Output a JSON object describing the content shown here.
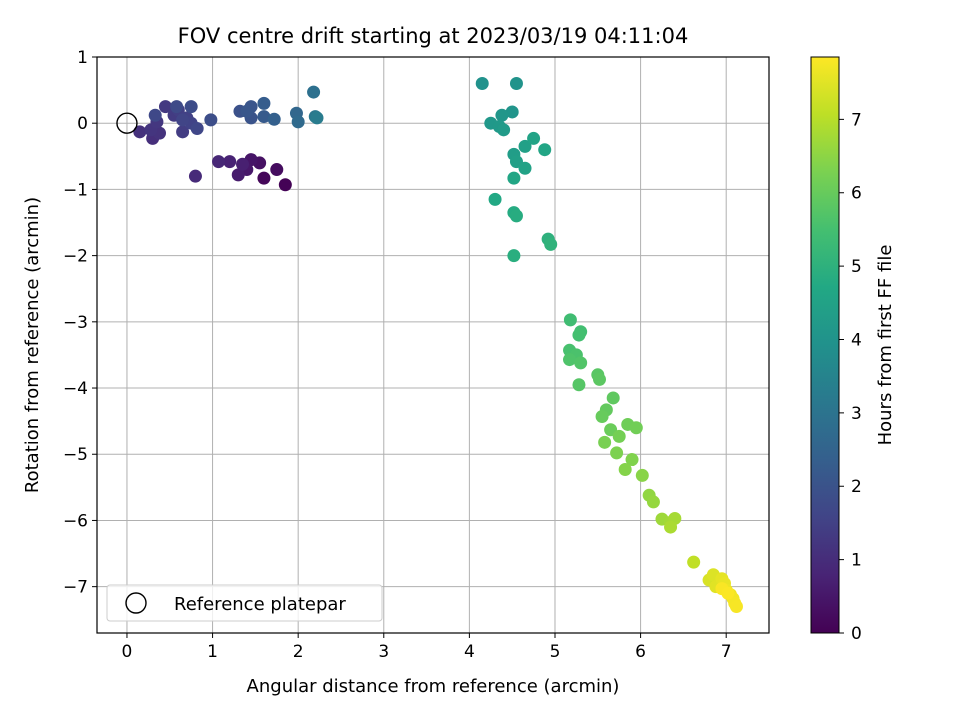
{
  "chart_data": {
    "type": "scatter",
    "title": "FOV centre drift starting at 2023/03/19 04:11:04",
    "xlabel": "Angular distance from reference (arcmin)",
    "ylabel": "Rotation from reference (arcmin)",
    "xlim": [
      -0.35,
      7.5
    ],
    "ylim": [
      -7.7,
      1.0
    ],
    "xticks": [
      0,
      1,
      2,
      3,
      4,
      5,
      6,
      7
    ],
    "yticks": [
      1,
      0,
      -1,
      -2,
      -3,
      -4,
      -5,
      -6,
      -7
    ],
    "grid": true,
    "legend": {
      "placement": "lower-left",
      "entries": [
        {
          "label": "Reference platepar",
          "marker": "open-circle"
        }
      ]
    },
    "reference_point": {
      "x": 0,
      "y": 0
    },
    "colorbar": {
      "label": "Hours from first FF file",
      "colormap": "viridis",
      "range": [
        0,
        7.85
      ],
      "ticks": [
        0,
        1,
        2,
        3,
        4,
        5,
        6,
        7
      ]
    },
    "series": [
      {
        "color_by": "hours",
        "points": [
          {
            "x": 1.85,
            "y": -0.93,
            "h": 0.05
          },
          {
            "x": 1.6,
            "y": -0.83,
            "h": 0.15
          },
          {
            "x": 1.75,
            "y": -0.7,
            "h": 0.25
          },
          {
            "x": 1.55,
            "y": -0.6,
            "h": 0.35
          },
          {
            "x": 1.45,
            "y": -0.55,
            "h": 0.45
          },
          {
            "x": 1.4,
            "y": -0.7,
            "h": 0.5
          },
          {
            "x": 1.3,
            "y": -0.78,
            "h": 0.6
          },
          {
            "x": 1.35,
            "y": -0.62,
            "h": 0.7
          },
          {
            "x": 1.2,
            "y": -0.58,
            "h": 0.75
          },
          {
            "x": 1.07,
            "y": -0.58,
            "h": 0.85
          },
          {
            "x": 0.8,
            "y": -0.8,
            "h": 0.95
          },
          {
            "x": 0.3,
            "y": -0.23,
            "h": 1.05
          },
          {
            "x": 0.15,
            "y": -0.13,
            "h": 1.1
          },
          {
            "x": 0.38,
            "y": -0.15,
            "h": 1.15
          },
          {
            "x": 0.28,
            "y": -0.1,
            "h": 1.2
          },
          {
            "x": 0.35,
            "y": 0.02,
            "h": 1.25
          },
          {
            "x": 0.45,
            "y": 0.25,
            "h": 1.3
          },
          {
            "x": 0.55,
            "y": 0.12,
            "h": 1.35
          },
          {
            "x": 0.65,
            "y": -0.13,
            "h": 1.4
          },
          {
            "x": 0.6,
            "y": 0.2,
            "h": 1.45
          },
          {
            "x": 0.7,
            "y": 0.08,
            "h": 1.5
          },
          {
            "x": 0.75,
            "y": 0.0,
            "h": 1.55
          },
          {
            "x": 0.65,
            "y": 0.05,
            "h": 1.6
          },
          {
            "x": 0.82,
            "y": -0.08,
            "h": 1.65
          },
          {
            "x": 0.33,
            "y": 0.12,
            "h": 1.7
          },
          {
            "x": 0.58,
            "y": 0.25,
            "h": 1.75
          },
          {
            "x": 0.75,
            "y": 0.25,
            "h": 1.8
          },
          {
            "x": 0.98,
            "y": 0.05,
            "h": 1.85
          },
          {
            "x": 1.32,
            "y": 0.18,
            "h": 1.95
          },
          {
            "x": 1.45,
            "y": 0.08,
            "h": 2.0
          },
          {
            "x": 1.45,
            "y": 0.25,
            "h": 2.05
          },
          {
            "x": 1.4,
            "y": 0.18,
            "h": 2.1
          },
          {
            "x": 1.6,
            "y": 0.1,
            "h": 2.2
          },
          {
            "x": 1.6,
            "y": 0.3,
            "h": 2.3
          },
          {
            "x": 1.72,
            "y": 0.06,
            "h": 2.4
          },
          {
            "x": 1.98,
            "y": 0.15,
            "h": 2.6
          },
          {
            "x": 2.0,
            "y": 0.02,
            "h": 2.7
          },
          {
            "x": 2.18,
            "y": 0.47,
            "h": 2.9
          },
          {
            "x": 2.2,
            "y": 0.1,
            "h": 3.1
          },
          {
            "x": 2.22,
            "y": 0.08,
            "h": 3.25
          },
          {
            "x": 4.15,
            "y": 0.6,
            "h": 3.95
          },
          {
            "x": 4.55,
            "y": 0.6,
            "h": 4.0
          },
          {
            "x": 4.5,
            "y": 0.17,
            "h": 4.05
          },
          {
            "x": 4.38,
            "y": 0.12,
            "h": 4.1
          },
          {
            "x": 4.25,
            "y": 0.0,
            "h": 4.15
          },
          {
            "x": 4.35,
            "y": -0.05,
            "h": 4.2
          },
          {
            "x": 4.4,
            "y": -0.1,
            "h": 4.25
          },
          {
            "x": 4.52,
            "y": -0.47,
            "h": 4.35
          },
          {
            "x": 4.55,
            "y": -0.58,
            "h": 4.4
          },
          {
            "x": 4.65,
            "y": -0.35,
            "h": 4.45
          },
          {
            "x": 4.65,
            "y": -0.68,
            "h": 4.5
          },
          {
            "x": 4.75,
            "y": -0.23,
            "h": 4.55
          },
          {
            "x": 4.88,
            "y": -0.4,
            "h": 4.6
          },
          {
            "x": 4.52,
            "y": -0.83,
            "h": 4.65
          },
          {
            "x": 4.3,
            "y": -1.15,
            "h": 4.7
          },
          {
            "x": 4.52,
            "y": -1.35,
            "h": 4.8
          },
          {
            "x": 4.55,
            "y": -1.4,
            "h": 4.85
          },
          {
            "x": 4.52,
            "y": -2.0,
            "h": 4.9
          },
          {
            "x": 4.92,
            "y": -1.75,
            "h": 5.0
          },
          {
            "x": 4.95,
            "y": -1.83,
            "h": 5.05
          },
          {
            "x": 5.18,
            "y": -2.97,
            "h": 5.4
          },
          {
            "x": 5.3,
            "y": -3.15,
            "h": 5.45
          },
          {
            "x": 5.28,
            "y": -3.2,
            "h": 5.5
          },
          {
            "x": 5.17,
            "y": -3.43,
            "h": 5.55
          },
          {
            "x": 5.25,
            "y": -3.5,
            "h": 5.6
          },
          {
            "x": 5.17,
            "y": -3.57,
            "h": 5.65
          },
          {
            "x": 5.3,
            "y": -3.62,
            "h": 5.7
          },
          {
            "x": 5.28,
            "y": -3.95,
            "h": 5.75
          },
          {
            "x": 5.5,
            "y": -3.8,
            "h": 5.8
          },
          {
            "x": 5.52,
            "y": -3.87,
            "h": 5.85
          },
          {
            "x": 5.68,
            "y": -4.15,
            "h": 5.9
          },
          {
            "x": 5.6,
            "y": -4.33,
            "h": 5.95
          },
          {
            "x": 5.55,
            "y": -4.43,
            "h": 6.0
          },
          {
            "x": 5.65,
            "y": -4.63,
            "h": 6.05
          },
          {
            "x": 5.85,
            "y": -4.55,
            "h": 6.1
          },
          {
            "x": 5.95,
            "y": -4.6,
            "h": 6.15
          },
          {
            "x": 5.75,
            "y": -4.73,
            "h": 6.2
          },
          {
            "x": 5.58,
            "y": -4.82,
            "h": 6.25
          },
          {
            "x": 5.72,
            "y": -4.98,
            "h": 6.3
          },
          {
            "x": 5.9,
            "y": -5.08,
            "h": 6.35
          },
          {
            "x": 5.82,
            "y": -5.23,
            "h": 6.4
          },
          {
            "x": 6.02,
            "y": -5.32,
            "h": 6.45
          },
          {
            "x": 6.1,
            "y": -5.62,
            "h": 6.55
          },
          {
            "x": 6.15,
            "y": -5.72,
            "h": 6.6
          },
          {
            "x": 6.25,
            "y": -5.98,
            "h": 6.7
          },
          {
            "x": 6.35,
            "y": -6.03,
            "h": 6.75
          },
          {
            "x": 6.4,
            "y": -5.97,
            "h": 6.8
          },
          {
            "x": 6.35,
            "y": -6.1,
            "h": 6.85
          },
          {
            "x": 6.62,
            "y": -6.63,
            "h": 7.1
          },
          {
            "x": 6.8,
            "y": -6.9,
            "h": 7.4
          },
          {
            "x": 6.85,
            "y": -6.82,
            "h": 7.45
          },
          {
            "x": 6.88,
            "y": -7.0,
            "h": 7.5
          },
          {
            "x": 6.95,
            "y": -6.88,
            "h": 7.55
          },
          {
            "x": 6.98,
            "y": -6.95,
            "h": 7.6
          },
          {
            "x": 7.0,
            "y": -7.05,
            "h": 7.65
          },
          {
            "x": 7.05,
            "y": -7.12,
            "h": 7.7
          },
          {
            "x": 7.08,
            "y": -7.18,
            "h": 7.72
          },
          {
            "x": 7.1,
            "y": -7.25,
            "h": 7.75
          },
          {
            "x": 7.12,
            "y": -7.3,
            "h": 7.78
          },
          {
            "x": 6.95,
            "y": -7.03,
            "h": 7.8
          },
          {
            "x": 7.02,
            "y": -7.1,
            "h": 7.82
          }
        ]
      }
    ]
  }
}
